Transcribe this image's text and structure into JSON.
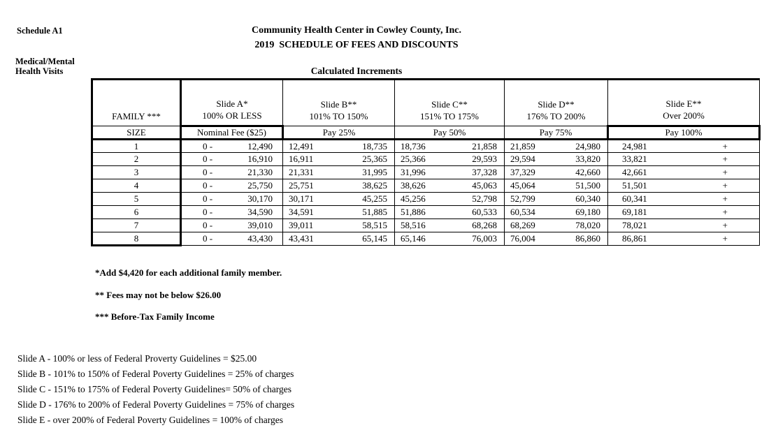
{
  "page": {
    "schedule_label": "Schedule A1",
    "org_title": "Community Health Center in Cowley County, Inc.",
    "doc_title": "2019  SCHEDULE OF FEES AND DISCOUNTS",
    "section_label_line1": "Medical/Mental",
    "section_label_line2": "Health Visits",
    "table_caption": "Calculated Increments"
  },
  "table": {
    "corner_line1": "FAMILY ***",
    "corner_line2": "SIZE",
    "columns": [
      {
        "title": "Slide A*",
        "range": "100% OR LESS",
        "pay": "Nominal Fee ($25)"
      },
      {
        "title": "Slide B**",
        "range": "101% TO 150%",
        "pay": "Pay 25%"
      },
      {
        "title": "Slide C**",
        "range": "151% TO 175%",
        "pay": "Pay 50%"
      },
      {
        "title": "Slide D**",
        "range": "176% TO 200%",
        "pay": "Pay 75%"
      },
      {
        "title": "Slide E**",
        "range": "Over 200%",
        "pay": "Pay 100%"
      }
    ],
    "rows": [
      {
        "size": "1",
        "a_low": "0 -",
        "a_high": "12,490",
        "b_low": "12,491",
        "b_high": "18,735",
        "c_low": "18,736",
        "c_high": "21,858",
        "d_low": "21,859",
        "d_high": "24,980",
        "e_low": "24,981",
        "e_suffix": "+"
      },
      {
        "size": "2",
        "a_low": "0 -",
        "a_high": "16,910",
        "b_low": "16,911",
        "b_high": "25,365",
        "c_low": "25,366",
        "c_high": "29,593",
        "d_low": "29,594",
        "d_high": "33,820",
        "e_low": "33,821",
        "e_suffix": "+"
      },
      {
        "size": "3",
        "a_low": "0 -",
        "a_high": "21,330",
        "b_low": "21,331",
        "b_high": "31,995",
        "c_low": "31,996",
        "c_high": "37,328",
        "d_low": "37,329",
        "d_high": "42,660",
        "e_low": "42,661",
        "e_suffix": "+"
      },
      {
        "size": "4",
        "a_low": "0 -",
        "a_high": "25,750",
        "b_low": "25,751",
        "b_high": "38,625",
        "c_low": "38,626",
        "c_high": "45,063",
        "d_low": "45,064",
        "d_high": "51,500",
        "e_low": "51,501",
        "e_suffix": "+"
      },
      {
        "size": "5",
        "a_low": "0 -",
        "a_high": "30,170",
        "b_low": "30,171",
        "b_high": "45,255",
        "c_low": "45,256",
        "c_high": "52,798",
        "d_low": "52,799",
        "d_high": "60,340",
        "e_low": "60,341",
        "e_suffix": "+"
      },
      {
        "size": "6",
        "a_low": "0 -",
        "a_high": "34,590",
        "b_low": "34,591",
        "b_high": "51,885",
        "c_low": "51,886",
        "c_high": "60,533",
        "d_low": "60,534",
        "d_high": "69,180",
        "e_low": "69,181",
        "e_suffix": "+"
      },
      {
        "size": "7",
        "a_low": "0 -",
        "a_high": "39,010",
        "b_low": "39,011",
        "b_high": "58,515",
        "c_low": "58,516",
        "c_high": "68,268",
        "d_low": "68,269",
        "d_high": "78,020",
        "e_low": "78,021",
        "e_suffix": "+"
      },
      {
        "size": "8",
        "a_low": "0 -",
        "a_high": "43,430",
        "b_low": "43,431",
        "b_high": "65,145",
        "c_low": "65,146",
        "c_high": "76,003",
        "d_low": "76,004",
        "d_high": "86,860",
        "e_low": "86,861",
        "e_suffix": "+"
      }
    ]
  },
  "footnotes": {
    "note1": "*Add $4,420 for each additional family member.",
    "note2": "** Fees may not be below $26.00",
    "note3": "*** Before-Tax Family Income"
  },
  "slide_key": {
    "line1": "Slide A - 100% or less of Federal Proverty Guidelines = $25.00",
    "line2": "Slide B - 101% to 150% of Federal Poverty Guidelines = 25% of charges",
    "line3": "Slide C - 151% to 175% of Federal Poverty Guidelines= 50% of charges",
    "line4": "Slide D - 176% to 200% of Federal Poverty Guidelines = 75% of charges",
    "line5": "Slide E - over 200% of Federal Poverty Guidelines = 100% of charges"
  }
}
